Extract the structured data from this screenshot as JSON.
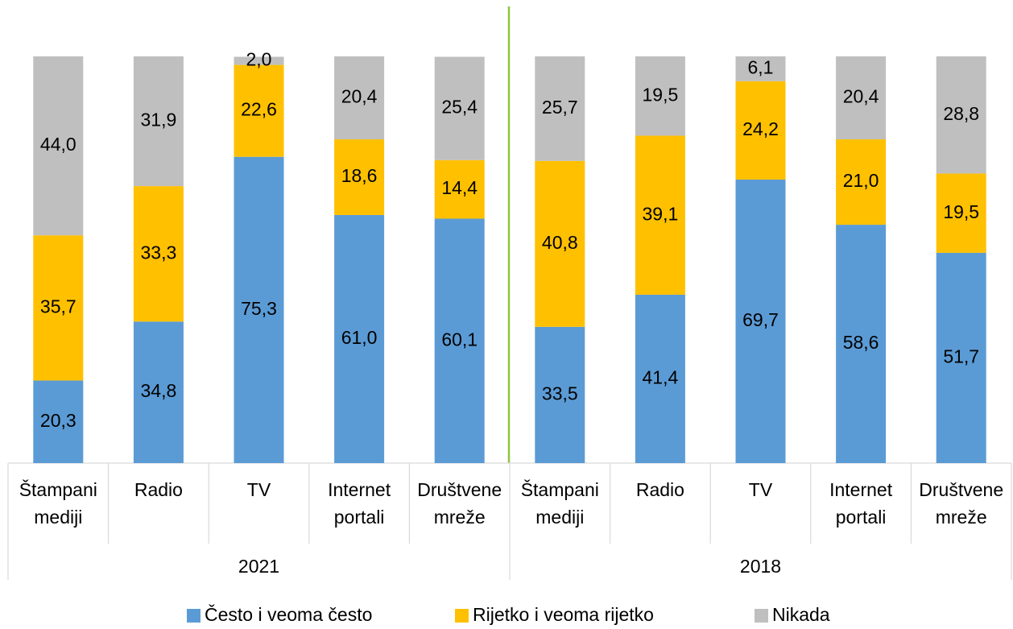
{
  "chart_data": {
    "type": "stacked_bar",
    "groups": [
      {
        "name": "2021",
        "categories": [
          "Štampani mediji",
          "Radio",
          "TV",
          "Internet portali",
          "Društvene mreže"
        ]
      },
      {
        "name": "2018",
        "categories": [
          "Štampani mediji",
          "Radio",
          "TV",
          "Internet portali",
          "Društvene mreže"
        ]
      }
    ],
    "ylim": [
      0,
      100
    ],
    "series": [
      {
        "name": "Često i veoma često",
        "color": "#5b9bd5",
        "values": [
          [
            20.3,
            34.8,
            75.3,
            61.0,
            60.1
          ],
          [
            33.5,
            41.4,
            69.7,
            58.6,
            51.7
          ]
        ],
        "value_labels": [
          [
            "20,3",
            "34,8",
            "75,3",
            "61,0",
            "60,1"
          ],
          [
            "33,5",
            "41,4",
            "69,7",
            "58,6",
            "51,7"
          ]
        ]
      },
      {
        "name": "Rijetko i veoma rijetko",
        "color": "#ffc000",
        "values": [
          [
            35.7,
            33.3,
            22.6,
            18.6,
            14.4
          ],
          [
            40.8,
            39.1,
            24.2,
            21.0,
            19.5
          ]
        ],
        "value_labels": [
          [
            "35,7",
            "33,3",
            "22,6",
            "18,6",
            "14,4"
          ],
          [
            "40,8",
            "39,1",
            "24,2",
            "21,0",
            "19,5"
          ]
        ]
      },
      {
        "name": "Nikada",
        "color": "#bfbfbf",
        "values": [
          [
            44.0,
            31.9,
            2.0,
            20.4,
            25.4
          ],
          [
            25.7,
            19.5,
            6.1,
            20.4,
            28.8
          ]
        ],
        "value_labels": [
          [
            "44,0",
            "31,9",
            "2,0",
            "20,4",
            "25,4"
          ],
          [
            "25,7",
            "19,5",
            "6,1",
            "20,4",
            "28,8"
          ]
        ]
      }
    ]
  }
}
